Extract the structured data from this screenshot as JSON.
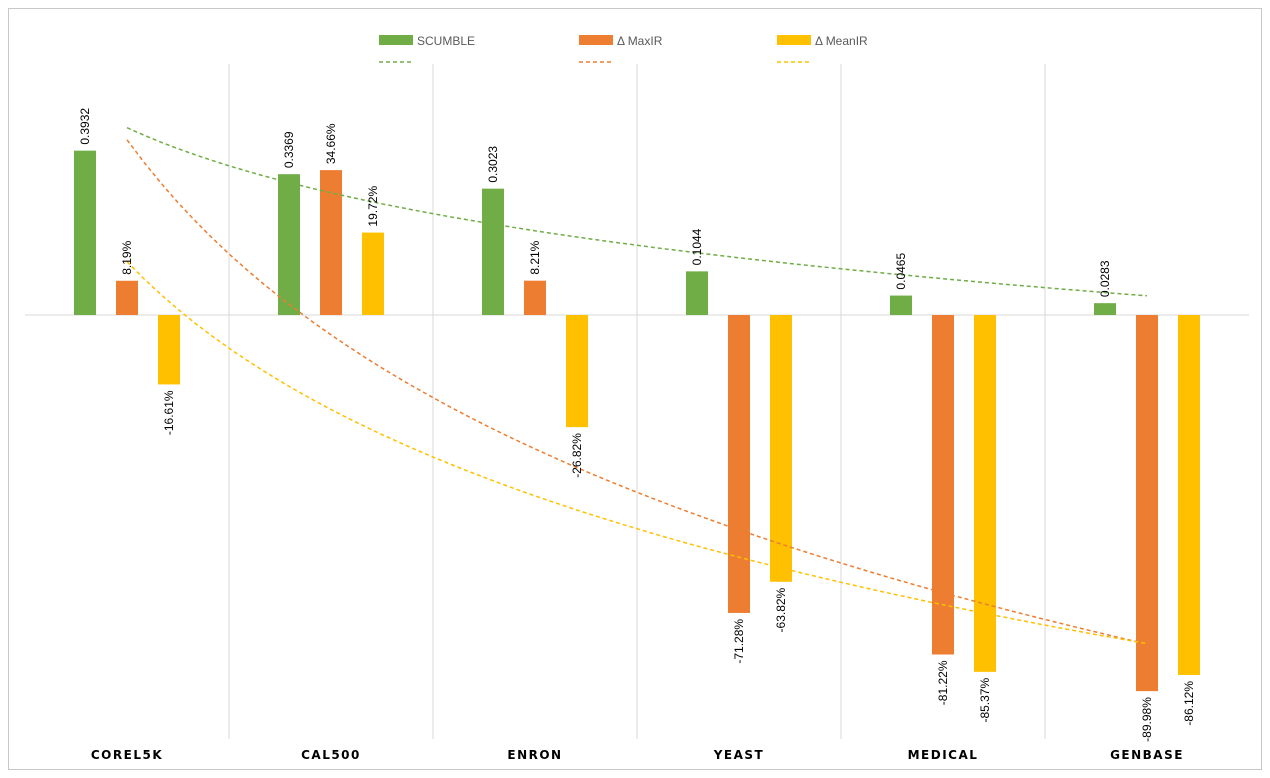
{
  "chart_data": {
    "type": "bar",
    "categories": [
      "COREL5K",
      "CAL500",
      "ENRON",
      "YEAST",
      "MEDICAL",
      "GENBASE"
    ],
    "series": [
      {
        "name": "SCUMBLE",
        "color": "#70ad47",
        "values": [
          0.3932,
          0.3369,
          0.3023,
          0.1044,
          0.0465,
          0.0283
        ],
        "labels": [
          "0.3932",
          "0.3369",
          "0.3023",
          "0.1044",
          "0.0465",
          "0.0283"
        ]
      },
      {
        "name": "Δ MaxIR",
        "color": "#ed7d31",
        "values": [
          0.0819,
          0.3466,
          0.0821,
          -0.7128,
          -0.8122,
          -0.8998
        ],
        "labels": [
          "8.19%",
          "34.66%",
          "8.21%",
          "-71.28%",
          "-81.22%",
          "-89.98%"
        ]
      },
      {
        "name": "Δ MeanIR",
        "color": "#ffc000",
        "values": [
          -0.1661,
          0.1972,
          -0.2682,
          -0.6382,
          -0.8537,
          -0.8612
        ],
        "labels": [
          "-16.61%",
          "19.72%",
          "-26.82%",
          "-63.82%",
          "-85.37%",
          "-86.12%"
        ]
      }
    ],
    "trendlines": true,
    "trendline_style": "dashed",
    "ylim": [
      -1.0,
      0.6
    ],
    "grid": "vertical",
    "legend_position": "top",
    "title": "",
    "xlabel": "",
    "ylabel": ""
  }
}
